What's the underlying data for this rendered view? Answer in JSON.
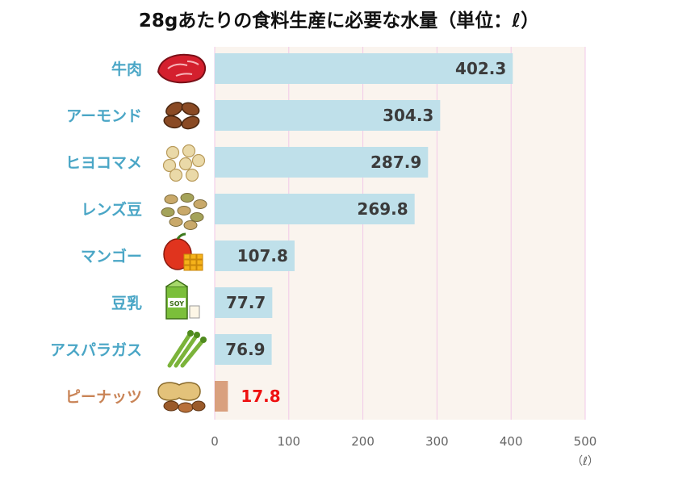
{
  "chart_data": {
    "type": "bar",
    "orientation": "horizontal",
    "title": "28gあたりの食料生産に必要な水量（単位：ℓ）",
    "xlabel": "（ℓ）",
    "ylabel": "",
    "xlim": [
      0,
      500
    ],
    "xticks": [
      "0",
      "100",
      "200",
      "300",
      "400",
      "500"
    ],
    "grid": true,
    "categories": [
      "牛肉",
      "アーモンド",
      "ヒヨコマメ",
      "レンズ豆",
      "マンゴー",
      "豆乳",
      "アスパラガス",
      "ピーナッツ"
    ],
    "values": [
      402.3,
      304.3,
      287.9,
      269.8,
      107.8,
      77.7,
      76.9,
      17.8
    ],
    "value_labels": [
      "402.3",
      "304.3",
      "287.9",
      "269.8",
      "107.8",
      "77.7",
      "76.9",
      "17.8"
    ],
    "icons": [
      "beef-icon",
      "almond-icon",
      "chickpea-icon",
      "lentil-icon",
      "mango-icon",
      "soy-milk-icon",
      "asparagus-icon",
      "peanut-icon"
    ],
    "icon_text": {
      "soy-milk-icon": "SOY"
    },
    "highlight_index": 7,
    "colors": {
      "bar": "#bfe0ea",
      "highlight_bar": "#d9a07e",
      "label": "#4aa6c6",
      "highlight_label": "#c98457",
      "value": "#3b3b3b",
      "highlight_value": "#ee1111",
      "plot_bg": "#faf4ee",
      "grid": "#f2c8e8",
      "tick": "#666666"
    }
  }
}
